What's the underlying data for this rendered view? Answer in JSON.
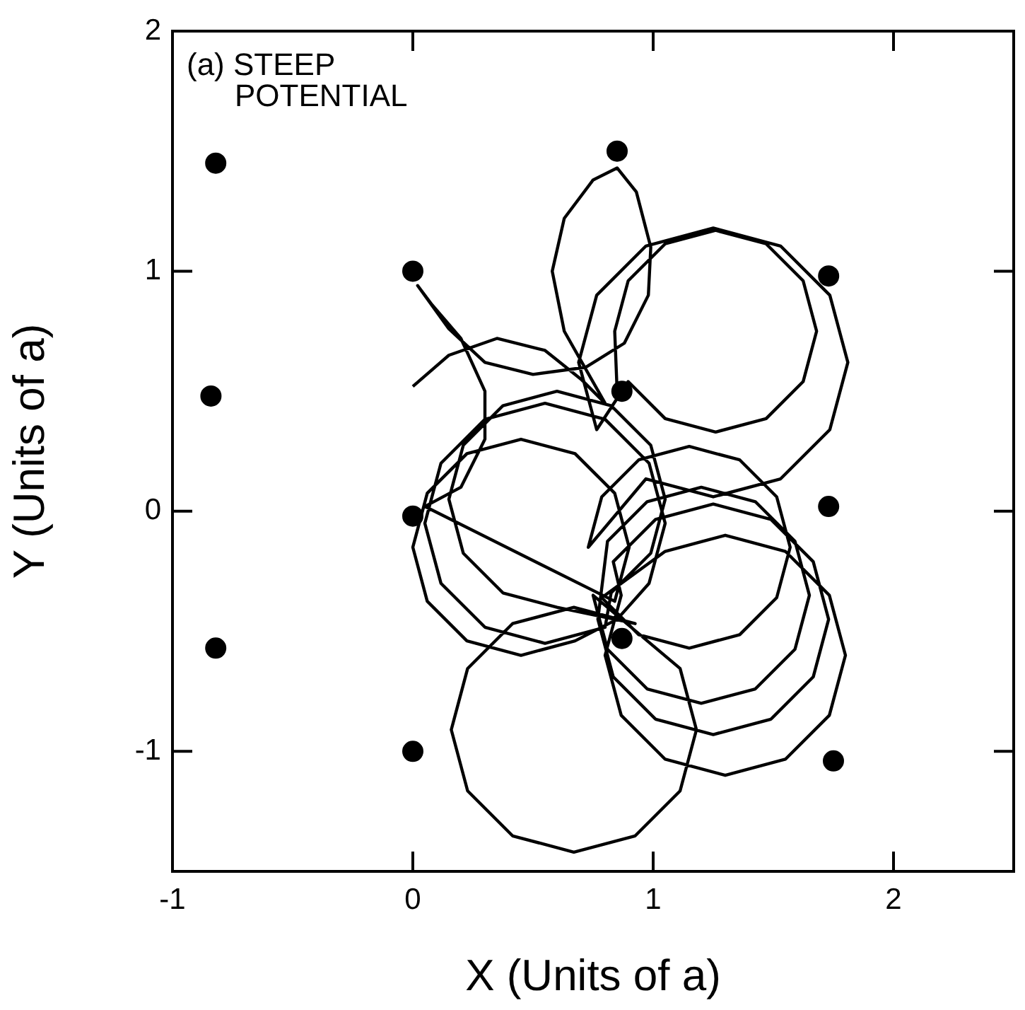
{
  "chart_data": {
    "type": "scatter",
    "xlabel": "X (Units of a)",
    "ylabel": "Y (Units of a)",
    "annotations": [
      "(a) STEEP\nPOTENTIAL"
    ],
    "xlim": [
      -1,
      2.5
    ],
    "xticks": [
      -1,
      0,
      1,
      2
    ],
    "ylim": [
      -1.5,
      2
    ],
    "yticks": [
      -1,
      0,
      1,
      2
    ],
    "grid": false,
    "legend": false,
    "series": [
      {
        "type": "scatter",
        "color": "#000000",
        "marker": "circle",
        "x": [
          -0.82,
          -0.84,
          -0.82,
          0,
          0,
          0,
          0.85,
          0.87,
          0.87,
          1.73,
          1.73,
          1.75
        ],
        "values": [
          1.45,
          0.48,
          -0.57,
          1,
          -0.02,
          -1,
          1.5,
          0.5,
          -0.53,
          0.98,
          0.02,
          -1.04
        ]
      },
      {
        "type": "line",
        "color": "#000000",
        "marker": "none",
        "x": [
          0.0,
          0.15,
          0.35,
          0.55,
          0.7,
          0.8,
          0.63,
          0.58,
          0.63,
          0.75,
          0.85,
          0.93,
          0.99,
          0.98,
          0.88,
          0.72,
          0.5,
          0.3,
          0.15,
          0.02,
          0.08,
          0.2,
          0.3,
          0.3,
          0.2,
          0.05,
          0.84,
          0.9,
          0.84,
          0.675,
          0.45,
          0.225,
          0.06,
          0.0,
          0.06,
          0.225,
          0.45,
          0.675,
          0.85,
          0.983,
          1.05,
          0.983,
          0.8,
          0.55,
          0.3,
          0.117,
          0.05,
          0.117,
          0.3,
          0.55,
          0.8,
          0.825,
          0.99,
          1.05,
          0.99,
          0.825,
          0.6,
          0.375,
          0.21,
          0.15,
          0.21,
          0.375,
          0.6,
          0.925,
          0.67,
          0.415,
          0.228,
          0.16,
          0.228,
          0.415,
          0.67,
          0.925,
          1.112,
          1.18,
          1.112,
          0.75,
          0.81,
          0.975,
          1.2,
          1.425,
          1.59,
          1.65,
          1.59,
          1.425,
          1.2,
          0.975,
          0.81,
          0.77,
          0.834,
          1.01,
          1.25,
          1.49,
          1.666,
          1.73,
          1.666,
          1.49,
          1.25,
          1.01,
          0.834,
          0.867,
          0.8,
          0.867,
          1.05,
          1.3,
          1.55,
          1.733,
          1.8,
          1.733,
          1.55,
          1.3,
          1.05,
          0.786,
          0.94,
          1.15,
          1.36,
          1.514,
          1.57,
          1.514,
          1.36,
          1.15,
          0.94,
          0.786,
          0.73,
          0.97,
          1.25,
          1.53,
          1.735,
          1.81,
          1.735,
          1.53,
          1.25,
          0.97,
          0.765,
          0.69,
          0.765,
          0.896,
          1.05,
          1.26,
          1.47,
          1.624,
          1.68,
          1.624,
          1.47,
          1.26,
          1.05,
          0.896,
          0.84,
          0.85
        ],
        "values": [
          0.52,
          0.65,
          0.72,
          0.67,
          0.55,
          0.45,
          0.75,
          1.0,
          1.22,
          1.38,
          1.43,
          1.33,
          1.1,
          0.9,
          0.7,
          0.6,
          0.57,
          0.62,
          0.76,
          0.94,
          0.86,
          0.72,
          0.5,
          0.3,
          0.1,
          0.02,
          -0.375,
          -0.15,
          0.075,
          0.24,
          0.3,
          0.24,
          0.075,
          -0.15,
          -0.375,
          -0.54,
          -0.6,
          -0.54,
          -0.45,
          -0.3,
          -0.05,
          0.2,
          0.383,
          0.45,
          0.383,
          0.2,
          -0.05,
          -0.3,
          -0.483,
          -0.55,
          -0.483,
          -0.34,
          -0.175,
          0.05,
          0.275,
          0.44,
          0.5,
          0.44,
          0.275,
          0.05,
          -0.175,
          -0.34,
          -0.4,
          -0.468,
          -0.4,
          -0.468,
          -0.655,
          -0.91,
          -1.165,
          -1.352,
          -1.42,
          -1.352,
          -1.165,
          -0.91,
          -0.655,
          -0.35,
          -0.575,
          -0.74,
          -0.8,
          -0.74,
          -0.575,
          -0.35,
          -0.125,
          0.04,
          0.1,
          0.04,
          -0.125,
          -0.45,
          -0.69,
          -0.866,
          -0.93,
          -0.866,
          -0.69,
          -0.45,
          -0.21,
          -0.034,
          0.03,
          -0.034,
          -0.21,
          -0.35,
          -0.6,
          -0.85,
          -1.033,
          -1.1,
          -1.033,
          -0.85,
          -0.6,
          -0.35,
          -0.167,
          -0.1,
          -0.167,
          -0.36,
          -0.514,
          -0.57,
          -0.514,
          -0.36,
          -0.15,
          0.06,
          0.214,
          0.27,
          0.214,
          0.06,
          -0.15,
          0.135,
          0.06,
          0.135,
          0.34,
          0.62,
          0.9,
          1.105,
          1.18,
          1.105,
          0.9,
          0.62,
          0.34,
          0.54,
          0.386,
          0.33,
          0.386,
          0.54,
          0.75,
          0.96,
          1.114,
          1.17,
          1.114,
          0.96,
          0.75,
          0.5
        ]
      }
    ]
  }
}
